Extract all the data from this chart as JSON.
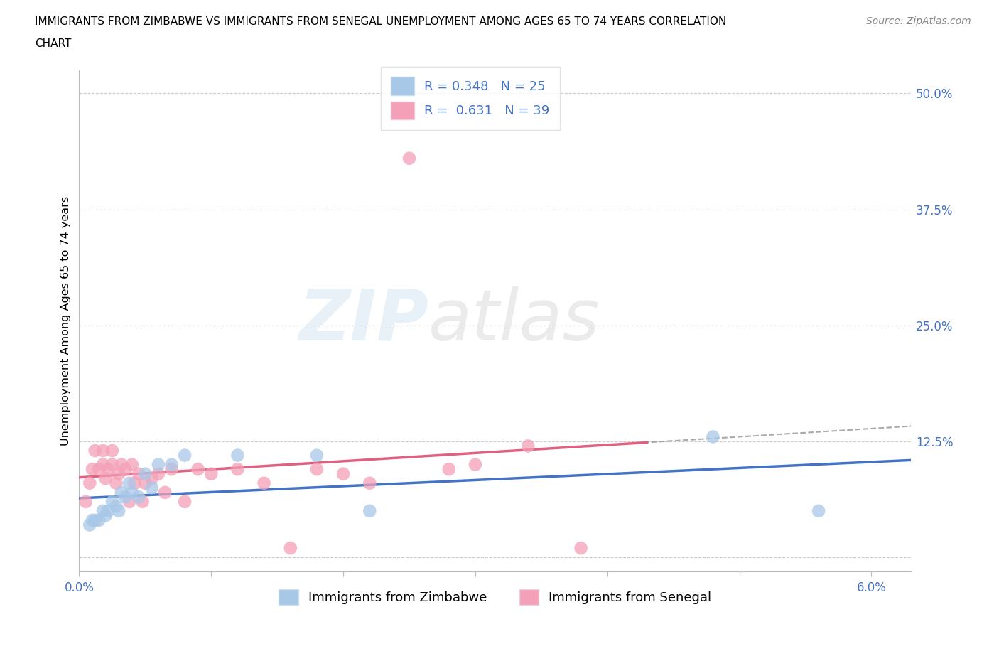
{
  "title_line1": "IMMIGRANTS FROM ZIMBABWE VS IMMIGRANTS FROM SENEGAL UNEMPLOYMENT AMONG AGES 65 TO 74 YEARS CORRELATION",
  "title_line2": "CHART",
  "source": "Source: ZipAtlas.com",
  "ylabel": "Unemployment Among Ages 65 to 74 years",
  "xlim": [
    0.0,
    0.063
  ],
  "ylim": [
    -0.015,
    0.525
  ],
  "yticks": [
    0.0,
    0.125,
    0.25,
    0.375,
    0.5
  ],
  "ytick_labels": [
    "",
    "12.5%",
    "25.0%",
    "37.5%",
    "50.0%"
  ],
  "xticks": [
    0.0,
    0.01,
    0.02,
    0.03,
    0.04,
    0.05,
    0.06
  ],
  "xtick_labels": [
    "0.0%",
    "",
    "",
    "",
    "",
    "",
    "6.0%"
  ],
  "zimbabwe_color": "#a8c8e8",
  "senegal_color": "#f4a0b8",
  "zimbabwe_line_color": "#4472c4",
  "senegal_line_color": "#e06080",
  "R_zimbabwe": 0.348,
  "N_zimbabwe": 25,
  "R_senegal": 0.631,
  "N_senegal": 39,
  "watermark_zip": "ZIP",
  "watermark_atlas": "atlas",
  "legend_label_zimbabwe": "Immigrants from Zimbabwe",
  "legend_label_senegal": "Immigrants from Senegal",
  "zimbabwe_x": [
    0.0008,
    0.001,
    0.0012,
    0.0015,
    0.0018,
    0.002,
    0.0022,
    0.0025,
    0.0028,
    0.003,
    0.0032,
    0.0035,
    0.0038,
    0.004,
    0.0045,
    0.005,
    0.0055,
    0.006,
    0.007,
    0.008,
    0.012,
    0.018,
    0.022,
    0.048,
    0.056
  ],
  "zimbabwe_y": [
    0.035,
    0.04,
    0.04,
    0.04,
    0.05,
    0.045,
    0.05,
    0.06,
    0.055,
    0.05,
    0.07,
    0.065,
    0.08,
    0.07,
    0.065,
    0.09,
    0.075,
    0.1,
    0.1,
    0.11,
    0.11,
    0.11,
    0.05,
    0.13,
    0.05
  ],
  "senegal_x": [
    0.0005,
    0.0008,
    0.001,
    0.0012,
    0.0015,
    0.0018,
    0.0018,
    0.002,
    0.0022,
    0.0025,
    0.0025,
    0.0028,
    0.003,
    0.0032,
    0.0035,
    0.0038,
    0.004,
    0.0042,
    0.0045,
    0.0048,
    0.005,
    0.0055,
    0.006,
    0.0065,
    0.007,
    0.008,
    0.009,
    0.01,
    0.012,
    0.014,
    0.016,
    0.018,
    0.02,
    0.022,
    0.025,
    0.028,
    0.03,
    0.034,
    0.038
  ],
  "senegal_y": [
    0.06,
    0.08,
    0.095,
    0.115,
    0.095,
    0.1,
    0.115,
    0.085,
    0.095,
    0.1,
    0.115,
    0.08,
    0.09,
    0.1,
    0.095,
    0.06,
    0.1,
    0.08,
    0.09,
    0.06,
    0.08,
    0.085,
    0.09,
    0.07,
    0.095,
    0.06,
    0.095,
    0.09,
    0.095,
    0.08,
    0.01,
    0.095,
    0.09,
    0.08,
    0.43,
    0.095,
    0.1,
    0.12,
    0.01
  ]
}
